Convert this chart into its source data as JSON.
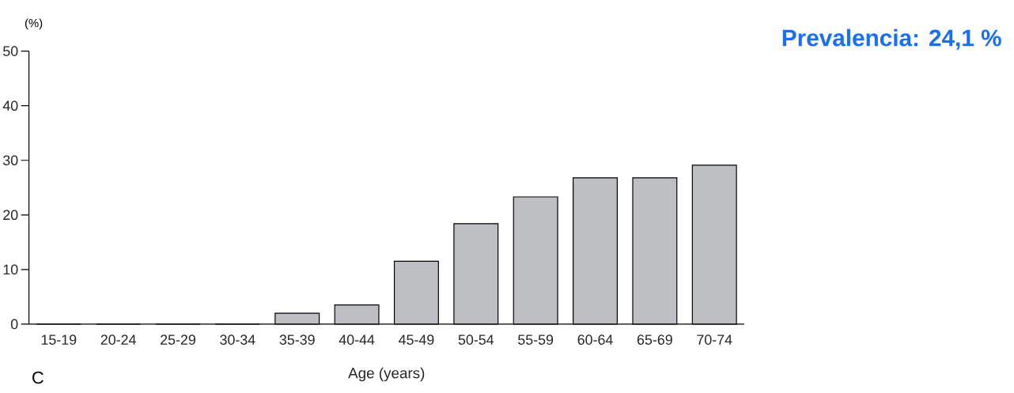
{
  "chart_data": {
    "type": "bar",
    "title": "Prevalencia: 24,1 %",
    "xlabel": "Age (years)",
    "ylabel": "(%)",
    "categories": [
      "15-19",
      "20-24",
      "25-29",
      "30-34",
      "35-39",
      "40-44",
      "45-49",
      "50-54",
      "55-59",
      "60-64",
      "65-69",
      "70-74"
    ],
    "values": [
      0,
      0,
      0,
      0,
      2,
      3.5,
      11.5,
      18.4,
      23.3,
      26.8,
      26.8,
      29.1
    ],
    "color": "#bebfc3",
    "ylim": [
      0,
      50
    ],
    "yticks": [
      0,
      10,
      20,
      30,
      40,
      50
    ],
    "annotations": [
      "C"
    ]
  }
}
